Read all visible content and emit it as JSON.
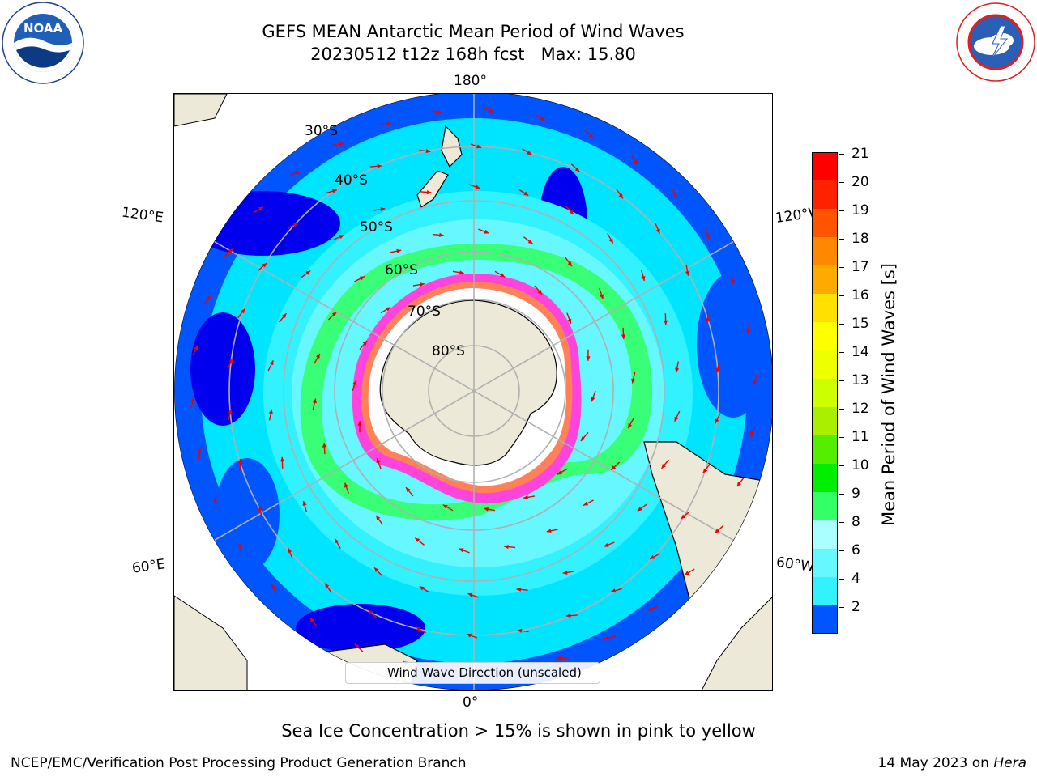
{
  "title": {
    "line1": "GEFS MEAN Antarctic Mean Period of Wind Waves",
    "line2": "20230512 t12z 168h fcst   Max: 15.80"
  },
  "map": {
    "longitude_labels": {
      "top": "180°",
      "bottom": "0°",
      "upper_left": "120°E",
      "lower_left": "60°E",
      "upper_right": "120°W",
      "lower_right": "60°W"
    },
    "latitude_labels": [
      "30°S",
      "40°S",
      "50°S",
      "60°S",
      "70°S",
      "80°S"
    ]
  },
  "colorbar": {
    "label": "Mean Period of Wind Waves [s]",
    "ticks": [
      "21",
      "20",
      "19",
      "18",
      "17",
      "16",
      "15",
      "14",
      "13",
      "12",
      "11",
      "10",
      "9",
      "8",
      "6",
      "4",
      "2"
    ],
    "colors": [
      "#0055ff",
      "#00e5ff",
      "#33f2ff",
      "#66f7ff",
      "#aaffff",
      "#33ff66",
      "#00ee00",
      "#55ee00",
      "#aaee00",
      "#ccff00",
      "#eeff00",
      "#ffff00",
      "#ffe000",
      "#ffaa00",
      "#ff8800",
      "#ff5500",
      "#ff2200",
      "#ff0000"
    ],
    "extend_color": "#0000ee"
  },
  "legend": {
    "entry": "Wind Wave Direction (unscaled)"
  },
  "logos": {
    "left": "NOAA",
    "right": "NATIONAL WEATHER SERVICE"
  },
  "caption": "Sea Ice Concentration > 15% is shown in pink to yellow",
  "footer": {
    "left": "NCEP/EMC/Verification Post Processing Product Generation Branch",
    "right_prefix": "14 May 2023 on ",
    "right_host": "Hera"
  }
}
